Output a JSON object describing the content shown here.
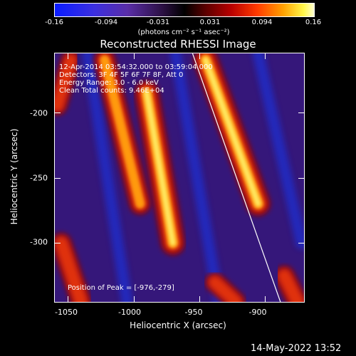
{
  "colorbar": {
    "ticks": [
      "-0.16",
      "-0.094",
      "-0.031",
      "0.031",
      "0.094",
      "0.16"
    ],
    "unit": "(photons cm⁻² s⁻¹ asec⁻²)"
  },
  "annotations": {
    "time": "12-Apr-2014 03:54:32.000 to 03:59:04.000",
    "detectors": "Detectors: 3F 4F 5F 6F 7F 8F, Att 0",
    "energy": "Energy Range: 3.0 - 6.0 keV",
    "clean": "Clean     Total counts: 9.46E+04",
    "peak": "Position of Peak = [-976,-279]"
  },
  "timestamp": "14-May-2022 13:52",
  "chart_data": {
    "type": "heatmap",
    "title": "Reconstructed RHESSI Image",
    "xlabel": "Heliocentric X (arcsec)",
    "ylabel": "Heliocentric Y (arcsec)",
    "xlim": [
      -1060,
      -870
    ],
    "ylim": [
      -345,
      -155
    ],
    "x_ticks": [
      "-1050",
      "-1000",
      "-950",
      "-900"
    ],
    "y_ticks": [
      "-200",
      "-250",
      "-300"
    ],
    "x_tick_values": [
      -1050,
      -1000,
      -950,
      -900
    ],
    "y_tick_values": [
      -200,
      -250,
      -300
    ],
    "color_range": [
      -0.16,
      0.16
    ],
    "peak": [
      -976,
      -279
    ],
    "limb_line": [
      [
        -955,
        -155
      ],
      [
        -888,
        -345
      ]
    ],
    "stripes": [
      {
        "name": "",
        "from": [
          -1055,
          -300
        ],
        "to": [
          -1040,
          -345
        ],
        "intensity": 0.09
      },
      {
        "name": "",
        "from": [
          -1048,
          -160
        ],
        "to": [
          -1058,
          -195
        ],
        "intensity": 0.07
      },
      {
        "name": "",
        "from": [
          -1022,
          -160
        ],
        "to": [
          -995,
          -270
        ],
        "intensity": 0.11
      },
      {
        "name": "",
        "from": [
          -990,
          -185
        ],
        "to": [
          -970,
          -300
        ],
        "intensity": 0.16
      },
      {
        "name": "",
        "from": [
          -945,
          -160
        ],
        "to": [
          -905,
          -270
        ],
        "intensity": 0.16
      },
      {
        "name": "",
        "from": [
          -938,
          -330
        ],
        "to": [
          -922,
          -345
        ],
        "intensity": 0.08
      },
      {
        "name": "",
        "from": [
          -885,
          -325
        ],
        "to": [
          -875,
          -345
        ],
        "intensity": 0.09
      }
    ]
  }
}
